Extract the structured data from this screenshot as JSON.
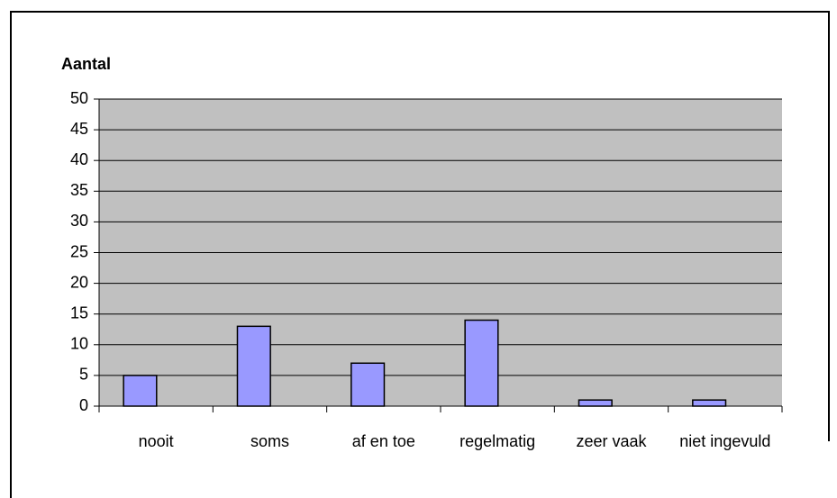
{
  "chart_data": {
    "type": "bar",
    "title": "Aantal",
    "categories": [
      "nooit",
      "soms",
      "af en toe",
      "regelmatig",
      "zeer vaak",
      "niet ingevuld"
    ],
    "values": [
      5,
      13,
      7,
      14,
      1,
      1
    ],
    "color": "#9999ff",
    "ylim": [
      0,
      50
    ],
    "yticks": [
      0,
      5,
      10,
      15,
      20,
      25,
      30,
      35,
      40,
      45,
      50
    ],
    "grid": true
  }
}
